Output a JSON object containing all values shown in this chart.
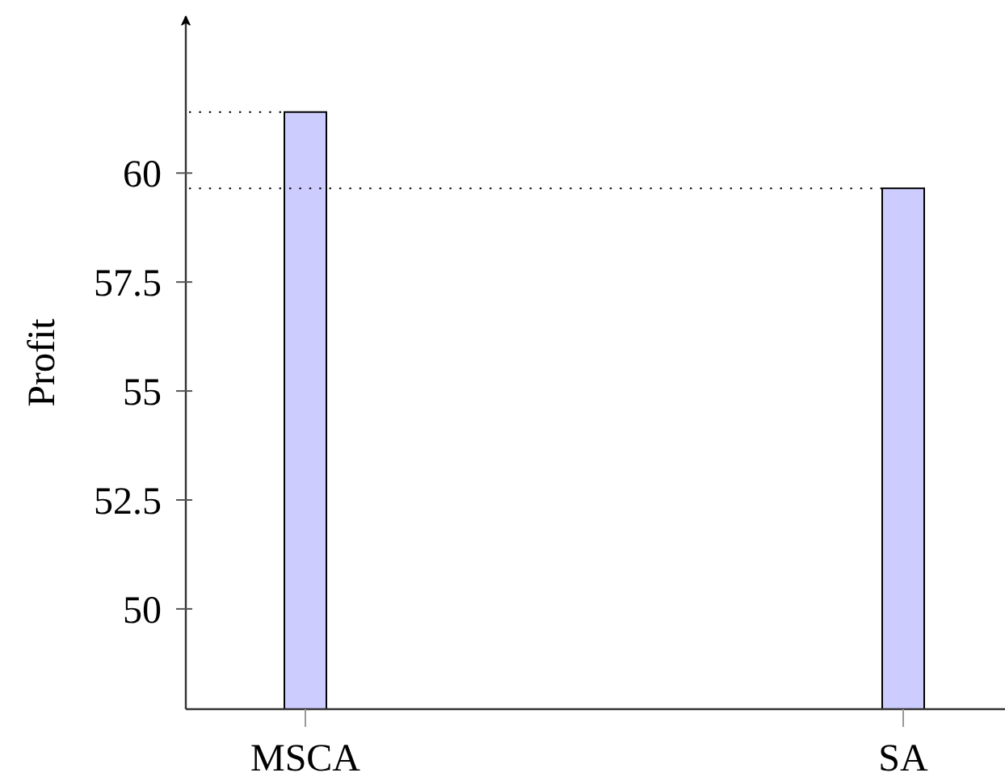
{
  "chart_data": {
    "type": "bar",
    "ylabel": "Profit",
    "categories": [
      "MSCA",
      "SA"
    ],
    "values": [
      61.4,
      59.65
    ],
    "color": "#ccccff",
    "ylim": [
      47.7,
      63.6
    ],
    "yticks": [
      50,
      52.5,
      55,
      57.5,
      60
    ],
    "ref_lines": [
      {
        "axis": "y",
        "value": 61.4,
        "color": "#000000",
        "line_style": "dotted"
      },
      {
        "axis": "y",
        "value": 59.65,
        "color": "#000000",
        "line_style": "dotted"
      }
    ]
  }
}
